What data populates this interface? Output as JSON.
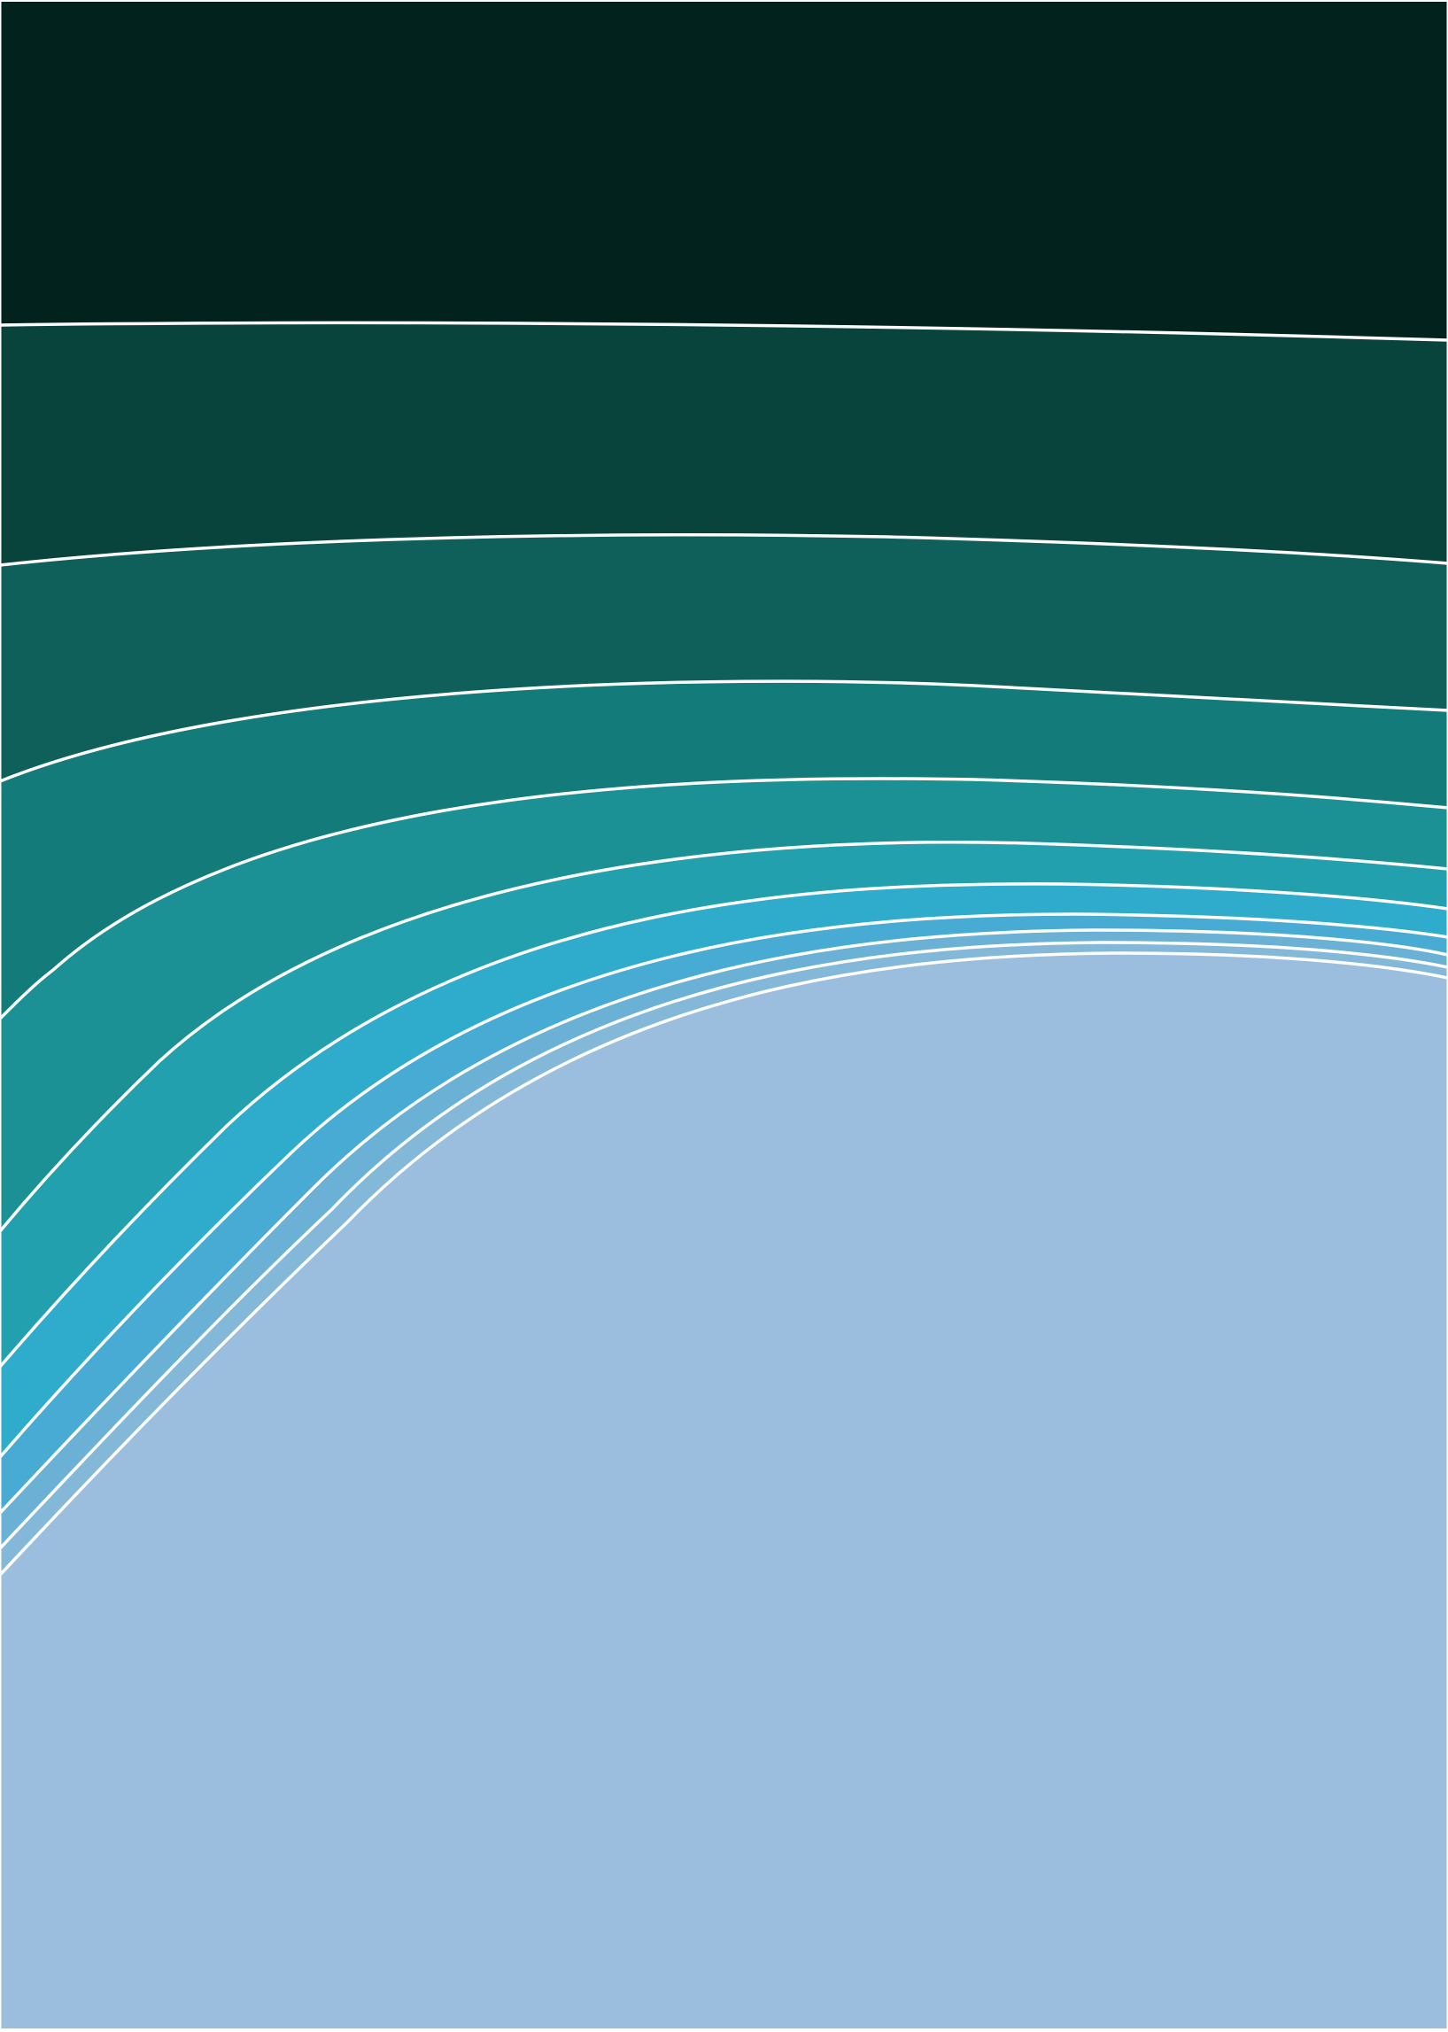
{
  "artwork": {
    "kind": "layered wave bands",
    "band_colors": [
      "#02221d",
      "#08433c",
      "#0f5f5b",
      "#137b79",
      "#1b9196",
      "#23a0ae",
      "#2faccb",
      "#48abd3",
      "#6bb1d5",
      "#84b8d9",
      "#9bbedf"
    ],
    "line_color": "#ffffff",
    "frame_color": "#ffffff"
  }
}
